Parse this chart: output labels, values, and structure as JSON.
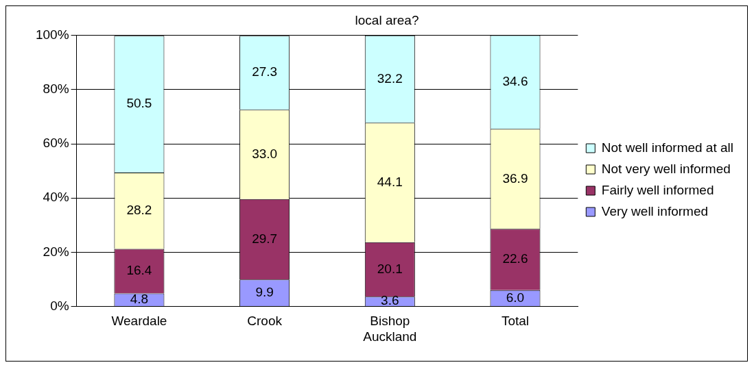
{
  "chart_data": {
    "type": "bar",
    "title": "local area?",
    "stacked": true,
    "categories": [
      "Weardale",
      "Crook",
      "Bishop Auckland",
      "Total"
    ],
    "series": [
      {
        "name": "Very well informed",
        "color": "#9999ff",
        "values": [
          4.8,
          9.9,
          3.6,
          6.0
        ],
        "value_labels": [
          "4.8",
          "9.9",
          "3.6",
          "6.0"
        ]
      },
      {
        "name": "Fairly well informed",
        "color": "#993366",
        "values": [
          16.4,
          29.7,
          20.1,
          22.6
        ],
        "value_labels": [
          "16.4",
          "29.7",
          "20.1",
          "22.6"
        ]
      },
      {
        "name": "Not very well informed",
        "color": "#ffffcc",
        "values": [
          28.2,
          33.0,
          44.1,
          36.9
        ],
        "value_labels": [
          "28.2",
          "33.0",
          "44.1",
          "36.9"
        ]
      },
      {
        "name": "Not well informed at all",
        "color": "#ccffff",
        "values": [
          50.5,
          27.3,
          32.2,
          34.6
        ],
        "value_labels": [
          "50.5",
          "27.3",
          "32.2",
          "34.6"
        ]
      }
    ],
    "ylim": [
      0,
      100
    ],
    "yticks": [
      {
        "value": 0,
        "label": "0%"
      },
      {
        "value": 20,
        "label": "20%"
      },
      {
        "value": 40,
        "label": "40%"
      },
      {
        "value": 60,
        "label": "60%"
      },
      {
        "value": 80,
        "label": "80%"
      },
      {
        "value": 100,
        "label": "100%"
      }
    ],
    "grid": "y",
    "legend": "right"
  }
}
